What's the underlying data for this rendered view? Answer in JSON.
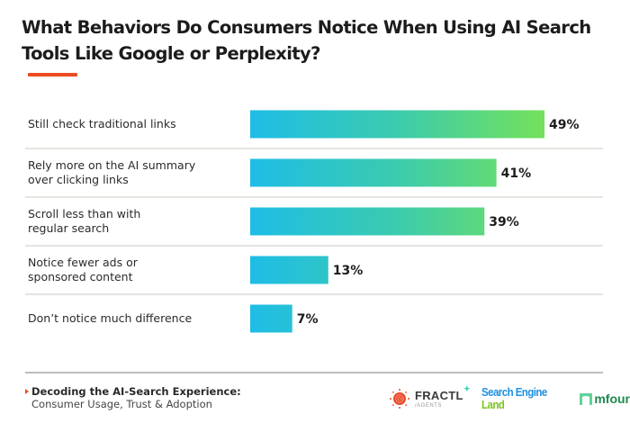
{
  "chart_data": {
    "type": "bar",
    "orientation": "horizontal",
    "title": "What Behaviors Do Consumers Notice When Using AI Search Tools Like Google or Perplexity?",
    "categories": [
      [
        "Still check traditional links"
      ],
      [
        "Rely more on the AI summary",
        "over clicking links"
      ],
      [
        "Scroll less than with",
        "regular search"
      ],
      [
        "Notice fewer ads or",
        "sponsored content"
      ],
      [
        "Don’t notice much difference"
      ]
    ],
    "values": [
      49,
      41,
      39,
      13,
      7
    ],
    "value_labels": [
      "49%",
      "41%",
      "39%",
      "13%",
      "7%"
    ],
    "unit": "%",
    "xlim": [
      0,
      49
    ],
    "xlabel": "",
    "ylabel": "",
    "grid": false,
    "legend": "none",
    "colors": {
      "gradient_start": "#1ebde6",
      "gradient_mid": "#3ccbae",
      "gradient_end": "#74e15a",
      "title_accent": "#ee4b23",
      "divider": "#dedbd6"
    }
  },
  "footer": {
    "source_title": "Decoding the AI-Search Experience:",
    "source_subtitle": "Consumer Usage, Trust & Adoption"
  },
  "logos": {
    "fractl_name": "FRACTL",
    "fractl_sub": "/AGENTS",
    "sel_part1": "Search Engine",
    "sel_part2": "Land",
    "mfour": "mfour"
  }
}
